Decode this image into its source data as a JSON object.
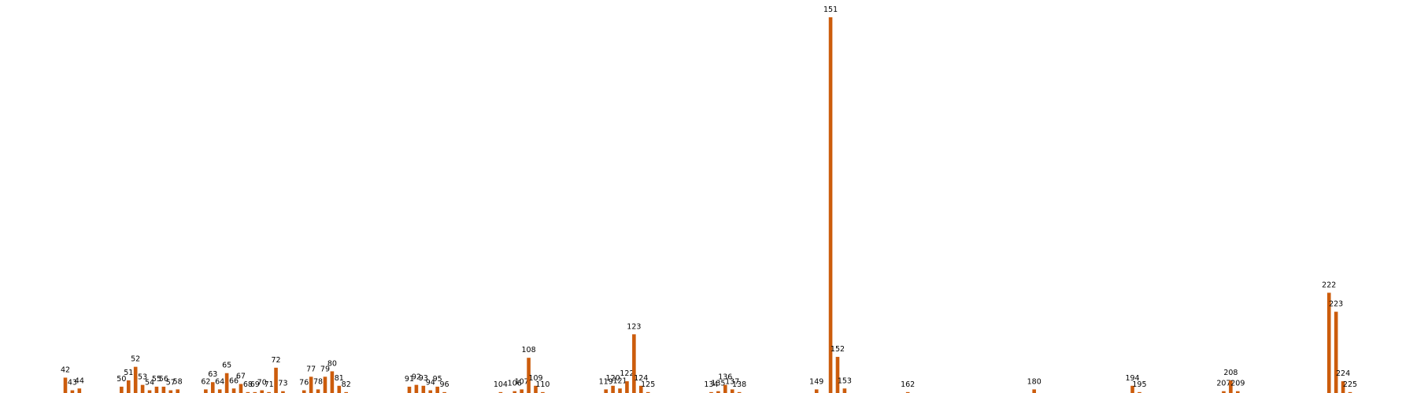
{
  "chart_data": {
    "type": "bar",
    "color": "#cc5c0c",
    "x": [
      42,
      43,
      44,
      50,
      51,
      52,
      53,
      54,
      55,
      56,
      57,
      58,
      62,
      63,
      64,
      65,
      66,
      67,
      68,
      69,
      70,
      71,
      72,
      73,
      76,
      77,
      78,
      79,
      80,
      81,
      82,
      91,
      92,
      93,
      94,
      95,
      96,
      104,
      106,
      107,
      108,
      109,
      110,
      119,
      120,
      121,
      122,
      123,
      124,
      125,
      134,
      135,
      136,
      137,
      138,
      149,
      151,
      152,
      153,
      162,
      180,
      194,
      195,
      207,
      208,
      209,
      222,
      223,
      224,
      225
    ],
    "values": [
      17,
      3,
      5,
      7,
      14,
      29,
      9,
      3,
      7,
      7,
      3,
      4,
      4,
      12,
      4,
      22,
      5,
      10,
      1,
      1,
      3,
      1,
      28,
      2,
      3,
      18,
      4,
      18,
      24,
      8,
      1,
      7,
      9,
      8,
      3,
      7,
      1,
      1,
      2,
      4,
      39,
      8,
      1,
      4,
      8,
      5,
      13,
      65,
      8,
      1,
      1,
      2,
      9,
      4,
      1,
      4,
      416,
      40,
      5,
      1,
      4,
      8,
      1,
      2,
      14,
      2,
      111,
      90,
      13,
      1
    ]
  }
}
